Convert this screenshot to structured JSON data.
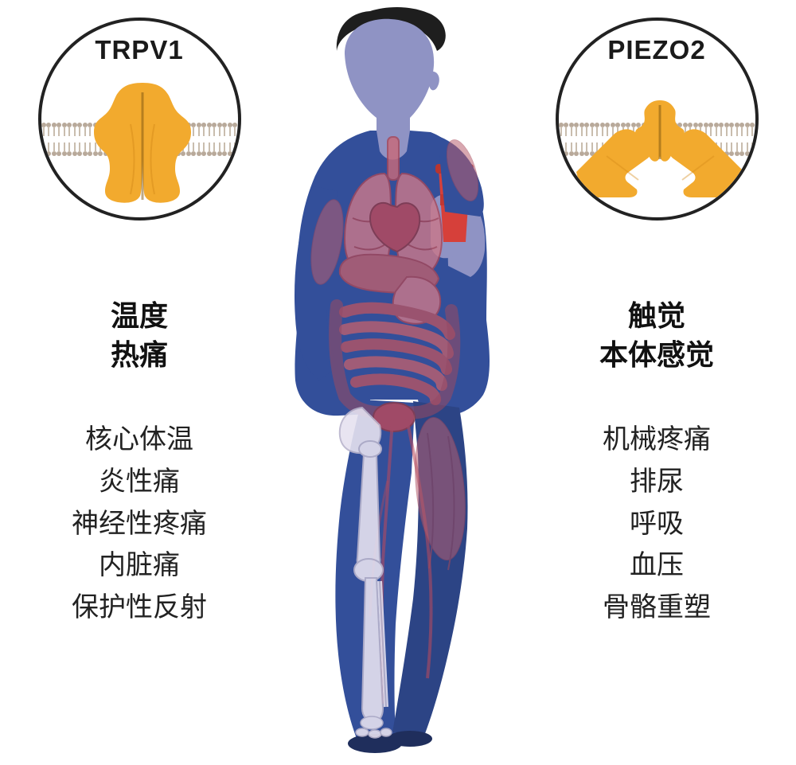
{
  "colors": {
    "channel_fill": "#f2aa2e",
    "channel_shadow": "#d68b1a",
    "circle_border": "#222222",
    "background": "#ffffff",
    "body_blue": "#334f9a",
    "body_skin": "#8f93c4",
    "organ_red": "#a8495a",
    "organ_fill": "#c76b7a",
    "bone": "#e6e1f0",
    "hair": "#1e1e1e",
    "cup": "#d6403a",
    "membrane_head": "#b8a99a",
    "membrane_tail": "#c9bdae",
    "text_main": "#111111",
    "text_list": "#222222"
  },
  "left": {
    "title": "TRPV1",
    "heading_lines": [
      "温度",
      "热痛"
    ],
    "list_lines": [
      "核心体温",
      "炎性痛",
      "神经性疼痛",
      "内脏痛",
      "保护性反射"
    ]
  },
  "right": {
    "title": "PIEZO2",
    "heading_lines": [
      "触觉",
      "本体感觉"
    ],
    "list_lines": [
      "机械疼痛",
      "排尿",
      "呼吸",
      "血压",
      "骨骼重塑"
    ]
  },
  "typography": {
    "circle_title_pt": 33,
    "heading_pt": 36,
    "list_pt": 34
  }
}
